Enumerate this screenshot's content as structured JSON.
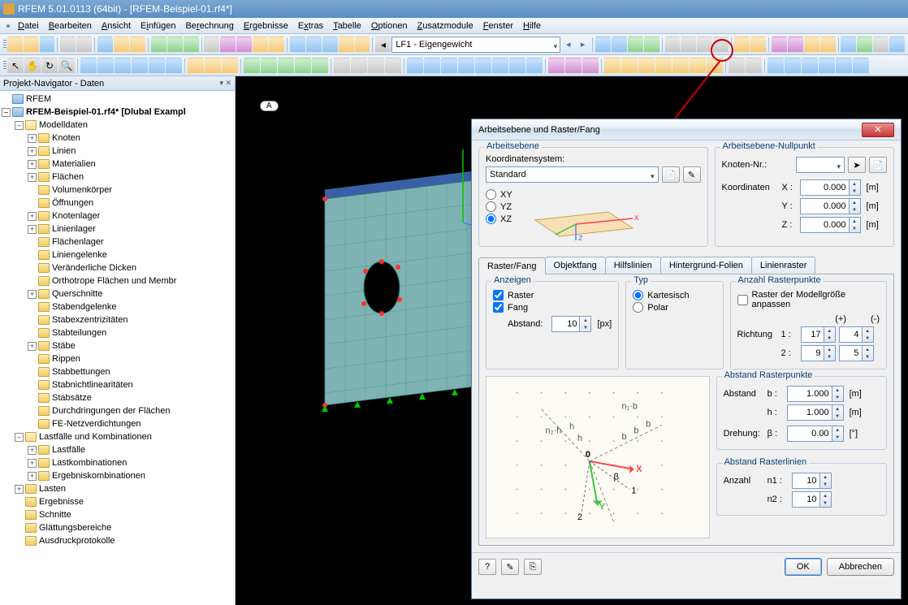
{
  "title": "RFEM 5.01.0113 (64bit) - [RFEM-Beispiel-01.rf4*]",
  "menu": [
    "Datei",
    "Bearbeiten",
    "Ansicht",
    "Einfügen",
    "Berechnung",
    "Ergebnisse",
    "Extras",
    "Tabelle",
    "Optionen",
    "Zusatzmodule",
    "Fenster",
    "Hilfe"
  ],
  "loadcase_combo": "LF1 - Eigengewicht",
  "nav_title": "Projekt-Navigator - Daten",
  "nav_close_symbols": "▢ ◫ ✕",
  "tree": {
    "root": "RFEM",
    "file": "RFEM-Beispiel-01.rf4* [Dlubal Exampl",
    "model_folder": "Modelldaten",
    "model_items": [
      "Knoten",
      "Linien",
      "Materialien",
      "Flächen",
      "Volumenkörper",
      "Öffnungen",
      "Knotenlager",
      "Linienlager",
      "Flächenlager",
      "Liniengelenke",
      "Veränderliche Dicken",
      "Orthotrope Flächen und Membr",
      "Querschnitte",
      "Stabendgelenke",
      "Stabexzentrizitäten",
      "Stabteilungen",
      "Stäbe",
      "Rippen",
      "Stabbettungen",
      "Stabnichtlinearitäten",
      "Stabsätze",
      "Durchdringungen der Flächen",
      "FE-Netzverdichtungen"
    ],
    "load_folder": "Lastfälle und Kombinationen",
    "load_items": [
      "Lastfälle",
      "Lastkombinationen",
      "Ergebniskombinationen"
    ],
    "extra_folders": [
      "Lasten",
      "Ergebnisse",
      "Schnitte",
      "Glättungsbereiche",
      "Ausdruckprotokolle"
    ]
  },
  "viewport_label": "A",
  "dialog": {
    "title": "Arbeitsebene und Raster/Fang",
    "section_arbeitsebene": "Arbeitsebene",
    "koord_label": "Koordinatensystem:",
    "koord_value": "Standard",
    "plane_options": [
      "XY",
      "YZ",
      "XZ"
    ],
    "plane_selected": "XZ",
    "section_nullpunkt": "Arbeitsebene-Nullpunkt",
    "knoten_label": "Knoten-Nr.:",
    "knoten_value": "",
    "koordinaten_label": "Koordinaten",
    "x_label": "X :",
    "x_value": "0.000",
    "x_unit": "[m]",
    "y_label": "Y :",
    "y_value": "0.000",
    "y_unit": "[m]",
    "z_label": "Z :",
    "z_value": "0.000",
    "z_unit": "[m]",
    "tabs": [
      "Raster/Fang",
      "Objektfang",
      "Hilfslinien",
      "Hintergrund-Folien",
      "Linienraster"
    ],
    "active_tab": 0,
    "section_anzeigen": "Anzeigen",
    "chk_raster": "Raster",
    "chk_raster_val": true,
    "chk_fang": "Fang",
    "chk_fang_val": true,
    "abstand_label": "Abstand:",
    "abstand_value": "10",
    "abstand_unit": "[px]",
    "section_typ": "Typ",
    "typ_options": [
      "Kartesisch",
      "Polar"
    ],
    "typ_selected": "Kartesisch",
    "section_anzahl": "Anzahl Rasterpunkte",
    "chk_anpassen": "Raster der Modellgröße anpassen",
    "chk_anpassen_val": false,
    "plus_label": "(+)",
    "minus_label": "(-)",
    "richtung_label": "Richtung",
    "r1_label": "1 :",
    "r1_plus": "17",
    "r1_minus": "4",
    "r2_label": "2 :",
    "r2_plus": "9",
    "r2_minus": "5",
    "section_abstand_rp": "Abstand Rasterpunkte",
    "abst_b_label": "Abstand",
    "b_lbl": "b :",
    "b_val": "1.000",
    "b_unit": "[m]",
    "h_lbl": "h :",
    "h_val": "1.000",
    "h_unit": "[m]",
    "drehung_label": "Drehung:",
    "beta_lbl": "β :",
    "beta_val": "0.00",
    "beta_unit": "[°]",
    "section_abstand_rl": "Abstand Rasterlinien",
    "anzahl_label": "Anzahl",
    "n1_lbl": "n1 :",
    "n1_val": "10",
    "n2_lbl": "n2 :",
    "n2_val": "10",
    "btn_ok": "OK",
    "btn_cancel": "Abbrechen"
  },
  "colors": {
    "mesh_face": "#7fb2b2",
    "mesh_line": "#2a7a7a",
    "slab": "#3a5fa6",
    "support": "#00c600",
    "node_red": "#ff3030",
    "axis_x": "#ff4040",
    "axis_y": "#40c040",
    "axis_z": "#5080ff"
  }
}
